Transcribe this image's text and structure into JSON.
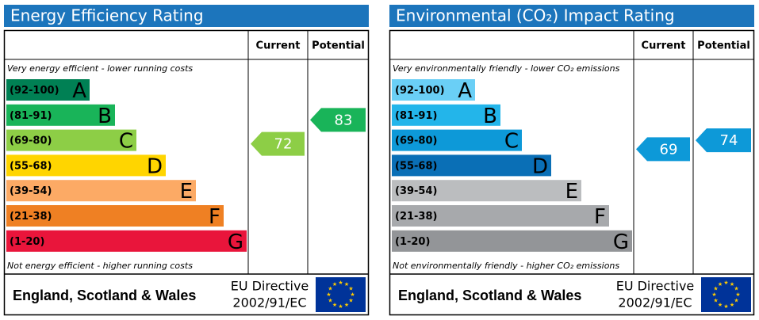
{
  "panels": [
    {
      "title": "Energy Efficiency Rating",
      "col_current": "Current",
      "col_potential": "Potential",
      "top_note": "Very energy efficient - lower running costs",
      "bottom_note": "Not energy efficient - higher running costs",
      "bands": [
        {
          "range": "(92-100)",
          "letter": "A",
          "color": "#008054"
        },
        {
          "range": "(81-91)",
          "letter": "B",
          "color": "#19b459"
        },
        {
          "range": "(69-80)",
          "letter": "C",
          "color": "#8dce46"
        },
        {
          "range": "(55-68)",
          "letter": "D",
          "color": "#ffd500"
        },
        {
          "range": "(39-54)",
          "letter": "E",
          "color": "#fcaa65"
        },
        {
          "range": "(21-38)",
          "letter": "F",
          "color": "#ef8023"
        },
        {
          "range": "(1-20)",
          "letter": "G",
          "color": "#e9153b"
        }
      ],
      "current": 72,
      "potential": 83,
      "region": "England, Scotland & Wales",
      "directive": [
        "EU Directive",
        "2002/91/EC"
      ]
    },
    {
      "title": "Environmental (CO₂) Impact Rating",
      "col_current": "Current",
      "col_potential": "Potential",
      "top_note": "Very environmentally friendly - lower CO₂ emissions",
      "bottom_note": "Not environmentally friendly - higher CO₂ emissions",
      "bands": [
        {
          "range": "(92-100)",
          "letter": "A",
          "color": "#6acff6"
        },
        {
          "range": "(81-91)",
          "letter": "B",
          "color": "#23b5ea"
        },
        {
          "range": "(69-80)",
          "letter": "C",
          "color": "#0d99d8"
        },
        {
          "range": "(55-68)",
          "letter": "D",
          "color": "#0a6fb6"
        },
        {
          "range": "(39-54)",
          "letter": "E",
          "color": "#bbbdbf"
        },
        {
          "range": "(21-38)",
          "letter": "F",
          "color": "#a7a9ac"
        },
        {
          "range": "(1-20)",
          "letter": "G",
          "color": "#939598"
        }
      ],
      "current": 69,
      "potential": 74,
      "region": "England, Scotland & Wales",
      "directive": [
        "EU Directive",
        "2002/91/EC"
      ]
    }
  ]
}
